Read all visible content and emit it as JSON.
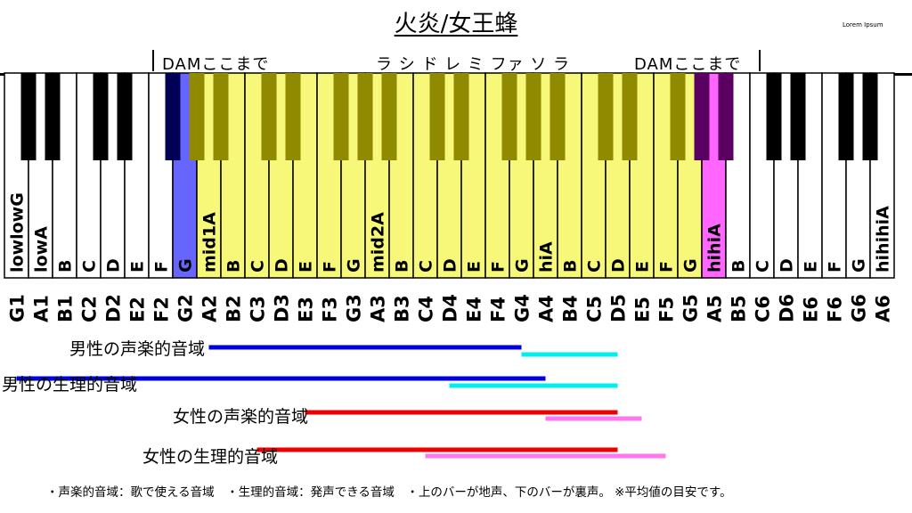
{
  "title": "火炎/女王蜂",
  "watermark": "Lorem Ipsum",
  "top_labels": {
    "dam_left": "DAMここまで",
    "solfege": "ラ シ ド レ ミ ファ ソ ラ",
    "dam_right": "DAMここまで"
  },
  "keyboard": {
    "white_keys": [
      "G1",
      "A1",
      "B1",
      "C2",
      "D2",
      "E2",
      "F2",
      "G2",
      "A2",
      "B2",
      "C3",
      "D3",
      "E3",
      "F3",
      "G3",
      "A3",
      "B3",
      "C4",
      "D4",
      "E4",
      "F4",
      "G4",
      "A4",
      "B4",
      "C5",
      "D5",
      "E5",
      "F5",
      "G5",
      "A5",
      "B5",
      "C6",
      "D6",
      "E6",
      "F6",
      "G6",
      "A6"
    ],
    "key_letters": [
      "G",
      "A",
      "B",
      "C",
      "D",
      "E",
      "F",
      "G",
      "A",
      "B",
      "C",
      "D",
      "E",
      "F",
      "G",
      "A",
      "B",
      "C",
      "D",
      "E",
      "F",
      "G",
      "A",
      "B",
      "C",
      "D",
      "E",
      "F",
      "G",
      "A",
      "B",
      "C",
      "D",
      "E",
      "F",
      "G",
      "A"
    ],
    "octave_labels": [
      {
        "key": 0,
        "text": "lowlow"
      },
      {
        "key": 1,
        "text": "low"
      },
      {
        "key": 8,
        "text": "mid1"
      },
      {
        "key": 15,
        "text": "mid2"
      },
      {
        "key": 22,
        "text": "hi"
      },
      {
        "key": 29,
        "text": "hihi"
      },
      {
        "key": 36,
        "text": "hihihi"
      }
    ],
    "highlight_range": {
      "start": "A2",
      "end": "G5",
      "color": "#f7f779"
    },
    "dam_low_key": "G2",
    "dam_low_color": "#6666ff",
    "dam_high_key": "A5",
    "dam_high_color": "#ff66ff"
  },
  "legend": [
    {
      "label": "男性の声楽的音域",
      "chest": {
        "from": "A2",
        "to": "G4",
        "color": "#0000dd"
      },
      "falsetto": {
        "from": "G4",
        "to": "D5",
        "color": "#00eeee"
      }
    },
    {
      "label": "男性の生理的音域",
      "chest": {
        "from": "G1",
        "to": "A4",
        "color": "#0000dd"
      },
      "falsetto": {
        "from": "D4",
        "to": "D5",
        "color": "#00eeee"
      }
    },
    {
      "label": "女性の声楽的音域",
      "chest": {
        "from": "E3",
        "to": "D5",
        "color": "#ee0000"
      },
      "falsetto": {
        "from": "A4",
        "to": "E5",
        "color": "#ff77ee"
      }
    },
    {
      "label": "女性の生理的音域",
      "chest": {
        "from": "C3",
        "to": "D5",
        "color": "#ee0000"
      },
      "falsetto": {
        "from": "C4",
        "to": "F5",
        "color": "#ff77ee"
      }
    }
  ],
  "footnote": "・声楽的音域：歌で使える音域　・生理的音域：発声できる音域　・上のバーが地声、下のバーが裏声。 ※平均値の目安です。"
}
